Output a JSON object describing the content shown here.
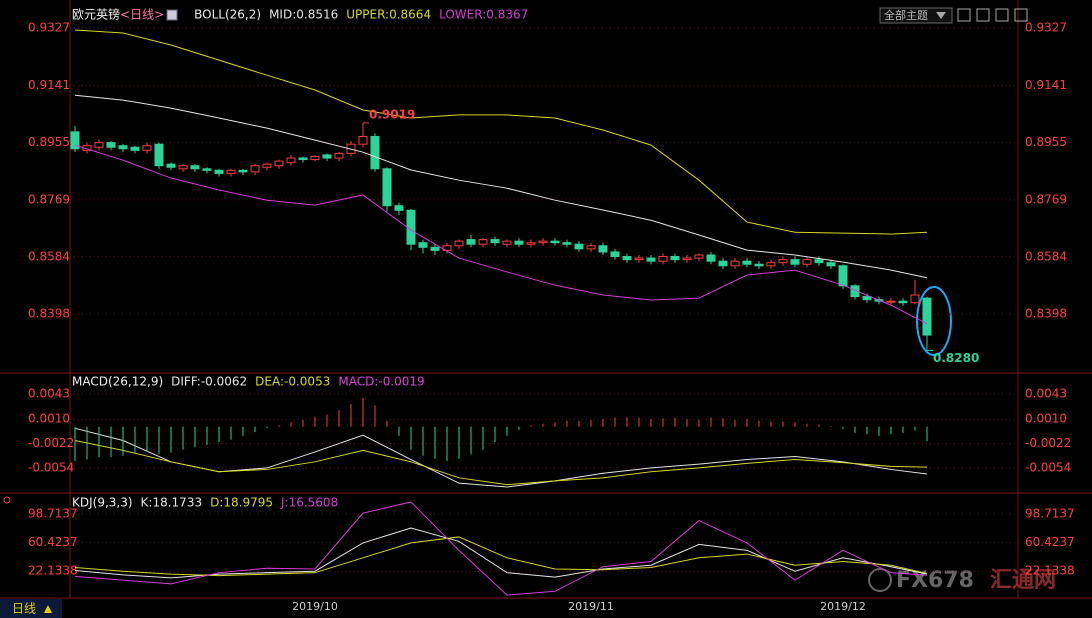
{
  "header": {
    "theme_button": "全部主题",
    "footer_tab": "日线"
  },
  "watermark": {
    "brand": "FX678",
    "name": "汇通网"
  },
  "chart_data": [
    {
      "type": "candlestick",
      "title": "欧元英镑",
      "subtitle": "<日线>",
      "indicator": "BOLL(26,2)",
      "up_color": "#ff3c3c",
      "down_color": "#2ad49a",
      "grid": true,
      "ylim": [
        0.821,
        0.9402
      ],
      "yticks": [
        0.9327,
        0.9141,
        0.8955,
        0.8769,
        0.8584,
        0.8398
      ],
      "open": [
        0.899,
        0.893,
        0.894,
        0.8955,
        0.8945,
        0.894,
        0.893,
        0.895,
        0.8885,
        0.887,
        0.888,
        0.887,
        0.8865,
        0.8855,
        0.8865,
        0.886,
        0.8875,
        0.888,
        0.889,
        0.8905,
        0.89,
        0.8915,
        0.8905,
        0.892,
        0.895,
        0.8975,
        0.887,
        0.875,
        0.8735,
        0.863,
        0.8615,
        0.8605,
        0.862,
        0.864,
        0.8625,
        0.864,
        0.8625,
        0.8635,
        0.8625,
        0.863,
        0.8635,
        0.863,
        0.8625,
        0.861,
        0.862,
        0.86,
        0.8585,
        0.8575,
        0.858,
        0.857,
        0.8585,
        0.8575,
        0.858,
        0.859,
        0.857,
        0.8555,
        0.857,
        0.856,
        0.8555,
        0.8565,
        0.8575,
        0.856,
        0.8575,
        0.8565,
        0.8555,
        0.849,
        0.8455,
        0.8445,
        0.844,
        0.844,
        0.8435,
        0.845
      ],
      "high": [
        0.901,
        0.8955,
        0.8965,
        0.896,
        0.895,
        0.8945,
        0.8955,
        0.8955,
        0.889,
        0.8885,
        0.8885,
        0.8875,
        0.887,
        0.887,
        0.887,
        0.8885,
        0.889,
        0.89,
        0.8915,
        0.891,
        0.8915,
        0.892,
        0.8925,
        0.896,
        0.9019,
        0.8985,
        0.8875,
        0.876,
        0.874,
        0.864,
        0.8625,
        0.863,
        0.864,
        0.8655,
        0.8645,
        0.865,
        0.864,
        0.8645,
        0.864,
        0.8645,
        0.8645,
        0.864,
        0.8635,
        0.863,
        0.863,
        0.861,
        0.8595,
        0.859,
        0.859,
        0.8595,
        0.8595,
        0.859,
        0.8595,
        0.86,
        0.858,
        0.858,
        0.858,
        0.857,
        0.8575,
        0.8585,
        0.8585,
        0.8585,
        0.8585,
        0.8575,
        0.856,
        0.8495,
        0.8465,
        0.8455,
        0.845,
        0.845,
        0.851,
        0.8455
      ],
      "low": [
        0.8925,
        0.892,
        0.893,
        0.893,
        0.8925,
        0.892,
        0.892,
        0.887,
        0.8865,
        0.886,
        0.886,
        0.8855,
        0.8845,
        0.8845,
        0.885,
        0.885,
        0.8865,
        0.887,
        0.888,
        0.889,
        0.8895,
        0.8895,
        0.8895,
        0.891,
        0.894,
        0.886,
        0.873,
        0.872,
        0.8605,
        0.8595,
        0.859,
        0.8595,
        0.861,
        0.8615,
        0.8615,
        0.862,
        0.8615,
        0.8615,
        0.8615,
        0.862,
        0.862,
        0.8615,
        0.86,
        0.86,
        0.859,
        0.8575,
        0.8565,
        0.8565,
        0.856,
        0.856,
        0.8565,
        0.8565,
        0.857,
        0.856,
        0.8545,
        0.8545,
        0.855,
        0.8545,
        0.8545,
        0.8555,
        0.855,
        0.855,
        0.8555,
        0.8545,
        0.848,
        0.8445,
        0.8435,
        0.843,
        0.843,
        0.8425,
        0.843,
        0.828
      ],
      "close": [
        0.8935,
        0.8945,
        0.8955,
        0.894,
        0.8935,
        0.893,
        0.8945,
        0.888,
        0.8875,
        0.888,
        0.887,
        0.8865,
        0.8855,
        0.8865,
        0.886,
        0.888,
        0.8885,
        0.8895,
        0.8905,
        0.89,
        0.891,
        0.8905,
        0.892,
        0.895,
        0.8975,
        0.887,
        0.875,
        0.8735,
        0.8625,
        0.8615,
        0.8605,
        0.862,
        0.8635,
        0.8625,
        0.864,
        0.863,
        0.8635,
        0.8625,
        0.863,
        0.8635,
        0.863,
        0.8625,
        0.861,
        0.862,
        0.86,
        0.8585,
        0.8575,
        0.858,
        0.857,
        0.8585,
        0.8575,
        0.858,
        0.859,
        0.857,
        0.8555,
        0.857,
        0.856,
        0.8555,
        0.8565,
        0.8575,
        0.856,
        0.8575,
        0.8565,
        0.8555,
        0.849,
        0.8455,
        0.8445,
        0.844,
        0.844,
        0.8435,
        0.846,
        0.833
      ],
      "series": [
        {
          "name": "MID:0.8516",
          "color": "#e6e6e6",
          "x": [
            0,
            4,
            8,
            12,
            16,
            20,
            24,
            28,
            32,
            36,
            40,
            44,
            48,
            52,
            56,
            60,
            64,
            68,
            71
          ],
          "values": [
            0.9109,
            0.9093,
            0.9067,
            0.9035,
            0.9002,
            0.8963,
            0.8924,
            0.8866,
            0.8833,
            0.8807,
            0.8768,
            0.8736,
            0.8703,
            0.8655,
            0.8606,
            0.859,
            0.8567,
            0.8541,
            0.8516
          ]
        },
        {
          "name": "UPPER:0.8664",
          "color": "#d8d820",
          "x": [
            0,
            4,
            8,
            12,
            16,
            20,
            24,
            28,
            32,
            36,
            40,
            44,
            48,
            52,
            56,
            60,
            64,
            68,
            71
          ],
          "values": [
            0.9321,
            0.9311,
            0.9272,
            0.9223,
            0.9174,
            0.9126,
            0.9061,
            0.9035,
            0.9045,
            0.9045,
            0.9035,
            0.8996,
            0.8947,
            0.8833,
            0.8697,
            0.8664,
            0.8661,
            0.8658,
            0.8664
          ]
        },
        {
          "name": "LOWER:0.8367",
          "color": "#d83cd8",
          "x": [
            0,
            4,
            8,
            12,
            16,
            20,
            24,
            28,
            32,
            36,
            40,
            44,
            48,
            52,
            56,
            60,
            64,
            68,
            71
          ],
          "values": [
            0.8947,
            0.8898,
            0.884,
            0.8801,
            0.8768,
            0.8752,
            0.8785,
            0.8671,
            0.858,
            0.8535,
            0.8492,
            0.846,
            0.8444,
            0.845,
            0.8525,
            0.8541,
            0.8492,
            0.8427,
            0.8367
          ]
        }
      ],
      "annotations": [
        {
          "value": 0.9019,
          "label": "0.9019",
          "color": "#ff4040"
        },
        {
          "value": 0.828,
          "label": "0.8280",
          "color": "#2ad49a"
        }
      ]
    },
    {
      "type": "macd",
      "indicator": "MACD(26,12,9)",
      "grid": true,
      "ylim": [
        -0.0083,
        0.0068
      ],
      "yticks": [
        0.0043,
        {
          "value": 0.001,
          "label": "0.0010"
        },
        -0.0022,
        -0.0054
      ],
      "series": [
        {
          "name": "DIFF:-0.0062",
          "color": "#e6e6e6",
          "x": [
            0,
            4,
            8,
            12,
            16,
            20,
            24,
            28,
            32,
            36,
            40,
            44,
            48,
            52,
            56,
            60,
            64,
            68,
            71
          ],
          "values": [
            -0.0002,
            -0.0018,
            -0.0046,
            -0.0059,
            -0.0054,
            -0.0033,
            -0.0011,
            -0.0043,
            -0.0074,
            -0.0079,
            -0.0071,
            -0.0061,
            -0.0054,
            -0.0049,
            -0.0043,
            -0.0039,
            -0.0046,
            -0.0056,
            -0.0062
          ]
        },
        {
          "name": "DEA:-0.0053",
          "color": "#d8d820",
          "x": [
            0,
            4,
            8,
            12,
            16,
            20,
            24,
            28,
            32,
            36,
            40,
            44,
            48,
            52,
            56,
            60,
            64,
            68,
            71
          ],
          "values": [
            -0.0018,
            -0.0031,
            -0.0046,
            -0.0059,
            -0.0056,
            -0.0046,
            -0.0031,
            -0.0046,
            -0.0067,
            -0.0076,
            -0.0071,
            -0.0067,
            -0.0059,
            -0.0054,
            -0.0048,
            -0.0043,
            -0.0047,
            -0.0052,
            -0.0053
          ]
        },
        {
          "name": "MACD:-0.0019",
          "type": "bar",
          "color": "#e040e0",
          "up_color": "#ff3c3c",
          "down_color": "#2ad49a",
          "values": [
            -0.0045,
            -0.0043,
            -0.004,
            -0.004,
            -0.0038,
            -0.0035,
            -0.0033,
            -0.0036,
            -0.0034,
            -0.003,
            -0.0027,
            -0.0024,
            -0.002,
            -0.0017,
            -0.0012,
            -0.0007,
            -0.0002,
            0.0002,
            0.0006,
            0.0009,
            0.0013,
            0.0016,
            0.0022,
            0.003,
            0.0038,
            0.0028,
            0.0008,
            -0.0012,
            -0.003,
            -0.0038,
            -0.0042,
            -0.0045,
            -0.0042,
            -0.0036,
            -0.003,
            -0.002,
            -0.0012,
            -0.0004,
            0.0002,
            0.0004,
            0.0006,
            0.0008,
            0.0008,
            0.0009,
            0.001,
            0.0012,
            0.0013,
            0.0012,
            0.001,
            0.0011,
            0.0012,
            0.001,
            0.0009,
            0.0012,
            0.0011,
            0.0009,
            0.001,
            0.0008,
            0.0007,
            0.0007,
            0.0006,
            0.0004,
            0.0003,
            0.0001,
            -0.0003,
            -0.0008,
            -0.001,
            -0.0012,
            -0.001,
            -0.0008,
            -0.0005,
            -0.0019
          ]
        }
      ]
    },
    {
      "type": "kdj",
      "indicator": "KDJ(9,3,3)",
      "grid": true,
      "ylim": [
        -14,
        123
      ],
      "yticks": [
        98.7137,
        60.4237,
        22.1338
      ],
      "categories": [
        null,
        null,
        null,
        null,
        null,
        null,
        null,
        null,
        null,
        null,
        null,
        null,
        null,
        null,
        null,
        null,
        null,
        null,
        null,
        null,
        "2019/10",
        null,
        null,
        null,
        null,
        null,
        null,
        null,
        null,
        null,
        null,
        null,
        null,
        null,
        null,
        null,
        null,
        null,
        null,
        null,
        null,
        null,
        null,
        "2019/11",
        null,
        null,
        null,
        null,
        null,
        null,
        null,
        null,
        null,
        null,
        null,
        null,
        null,
        null,
        null,
        null,
        null,
        null,
        null,
        null,
        "2019/12",
        null,
        null,
        null,
        null,
        null,
        null,
        null
      ],
      "series": [
        {
          "name": "K:18.1733",
          "color": "#e6e6e6",
          "x": [
            0,
            4,
            8,
            12,
            16,
            20,
            24,
            28,
            32,
            36,
            40,
            44,
            48,
            52,
            56,
            60,
            64,
            68,
            71
          ],
          "values": [
            23,
            17,
            13,
            18,
            20,
            22,
            60,
            80,
            62,
            20,
            14,
            25,
            30,
            58,
            50,
            22,
            40,
            28,
            18.1733
          ]
        },
        {
          "name": "D:18.9795",
          "color": "#d8d820",
          "x": [
            0,
            4,
            8,
            12,
            16,
            20,
            24,
            28,
            32,
            36,
            40,
            44,
            48,
            52,
            56,
            60,
            64,
            68,
            71
          ],
          "values": [
            27,
            22,
            18,
            16,
            18,
            20,
            40,
            60,
            68,
            40,
            25,
            24,
            27,
            40,
            45,
            30,
            35,
            30,
            18.9795
          ]
        },
        {
          "name": "J:16.5608",
          "color": "#d83cd8",
          "x": [
            0,
            4,
            8,
            12,
            16,
            20,
            24,
            28,
            32,
            36,
            40,
            44,
            48,
            52,
            56,
            60,
            64,
            68,
            71
          ],
          "values": [
            15,
            10,
            5,
            20,
            26,
            25,
            100,
            115,
            50,
            -10,
            -5,
            28,
            35,
            90,
            60,
            10,
            50,
            20,
            16.5608
          ]
        }
      ]
    }
  ]
}
